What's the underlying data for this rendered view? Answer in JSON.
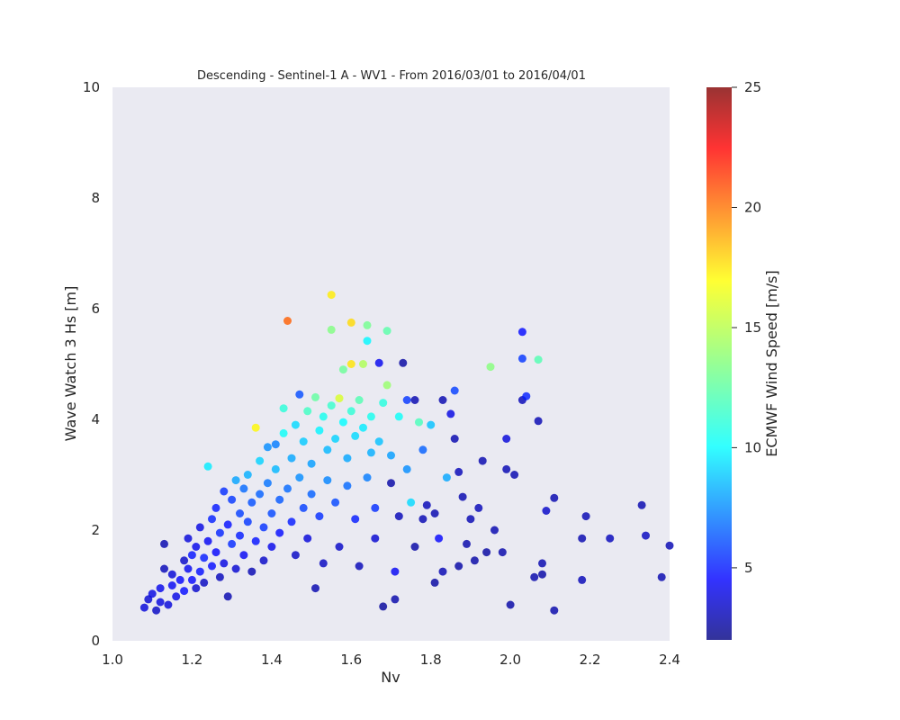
{
  "chart_data": {
    "type": "scatter",
    "title": "Descending - Sentinel-1 A - WV1 - From 2016/03/01 to 2016/04/01",
    "xlabel": "Nv",
    "ylabel": "Wave Watch 3 Hs [m]",
    "xlim": [
      1.0,
      2.4
    ],
    "ylim": [
      0,
      10
    ],
    "xticks": [
      "1.0",
      "1.2",
      "1.4",
      "1.6",
      "1.8",
      "2.0",
      "2.2",
      "2.4"
    ],
    "yticks": [
      "0",
      "2",
      "4",
      "6",
      "8",
      "10"
    ],
    "grid": false,
    "background": "#eaeaf2",
    "colorbar": {
      "label": "ECMWF Wind Speed [m/s]",
      "range": [
        2,
        25
      ],
      "ticks": [
        "5",
        "10",
        "15",
        "20",
        "25"
      ],
      "colormap": "jet"
    },
    "points": [
      [
        1.08,
        0.6,
        4.0
      ],
      [
        1.09,
        0.75,
        3.8
      ],
      [
        1.1,
        0.85,
        4.2
      ],
      [
        1.11,
        0.55,
        3.5
      ],
      [
        1.12,
        0.7,
        4.1
      ],
      [
        1.12,
        0.95,
        4.4
      ],
      [
        1.13,
        1.3,
        3.2
      ],
      [
        1.13,
        1.75,
        3.0
      ],
      [
        1.14,
        0.65,
        4.0
      ],
      [
        1.15,
        1.0,
        4.6
      ],
      [
        1.15,
        1.2,
        3.9
      ],
      [
        1.16,
        0.8,
        4.3
      ],
      [
        1.17,
        1.1,
        4.8
      ],
      [
        1.18,
        1.45,
        3.6
      ],
      [
        1.18,
        0.9,
        5.0
      ],
      [
        1.19,
        1.3,
        4.5
      ],
      [
        1.19,
        1.85,
        4.0
      ],
      [
        1.2,
        1.1,
        4.9
      ],
      [
        1.2,
        1.55,
        5.2
      ],
      [
        1.21,
        0.95,
        3.7
      ],
      [
        1.21,
        1.7,
        4.4
      ],
      [
        1.22,
        1.25,
        5.1
      ],
      [
        1.22,
        2.05,
        4.2
      ],
      [
        1.23,
        1.5,
        5.4
      ],
      [
        1.23,
        1.05,
        3.4
      ],
      [
        1.24,
        1.8,
        4.6
      ],
      [
        1.24,
        3.15,
        10.2
      ],
      [
        1.25,
        1.35,
        5.0
      ],
      [
        1.25,
        2.2,
        5.5
      ],
      [
        1.26,
        1.6,
        4.8
      ],
      [
        1.26,
        2.4,
        5.3
      ],
      [
        1.27,
        1.15,
        3.3
      ],
      [
        1.27,
        1.95,
        5.6
      ],
      [
        1.28,
        2.7,
        5.8
      ],
      [
        1.28,
        1.4,
        4.2
      ],
      [
        1.29,
        2.1,
        5.1
      ],
      [
        1.29,
        0.8,
        3.0
      ],
      [
        1.3,
        1.75,
        5.7
      ],
      [
        1.3,
        2.55,
        6.0
      ],
      [
        1.31,
        2.9,
        8.5
      ],
      [
        1.31,
        1.3,
        3.8
      ],
      [
        1.32,
        2.3,
        6.2
      ],
      [
        1.32,
        1.9,
        5.4
      ],
      [
        1.33,
        2.75,
        7.2
      ],
      [
        1.33,
        1.55,
        4.6
      ],
      [
        1.34,
        3.0,
        8.8
      ],
      [
        1.34,
        2.15,
        6.0
      ],
      [
        1.35,
        1.25,
        3.1
      ],
      [
        1.35,
        2.5,
        6.6
      ],
      [
        1.36,
        3.85,
        16.5
      ],
      [
        1.36,
        1.8,
        5.2
      ],
      [
        1.37,
        3.25,
        9.6
      ],
      [
        1.37,
        2.65,
        7.0
      ],
      [
        1.38,
        2.05,
        5.9
      ],
      [
        1.38,
        1.45,
        3.6
      ],
      [
        1.39,
        3.5,
        8.0
      ],
      [
        1.39,
        2.85,
        7.4
      ],
      [
        1.4,
        2.3,
        6.4
      ],
      [
        1.4,
        1.7,
        4.4
      ],
      [
        1.41,
        3.1,
        9.0
      ],
      [
        1.41,
        3.55,
        7.6
      ],
      [
        1.42,
        2.55,
        6.8
      ],
      [
        1.42,
        1.95,
        5.0
      ],
      [
        1.43,
        3.75,
        10.8
      ],
      [
        1.43,
        4.2,
        11.5
      ],
      [
        1.44,
        5.78,
        20.0
      ],
      [
        1.44,
        2.75,
        7.2
      ],
      [
        1.45,
        3.3,
        8.6
      ],
      [
        1.45,
        2.15,
        5.4
      ],
      [
        1.46,
        3.9,
        9.8
      ],
      [
        1.46,
        1.55,
        3.5
      ],
      [
        1.47,
        4.45,
        6.5
      ],
      [
        1.47,
        2.95,
        8.0
      ],
      [
        1.48,
        3.6,
        9.4
      ],
      [
        1.48,
        2.4,
        6.2
      ],
      [
        1.49,
        4.15,
        12.0
      ],
      [
        1.49,
        1.85,
        4.0
      ],
      [
        1.5,
        3.2,
        8.4
      ],
      [
        1.5,
        2.65,
        7.0
      ],
      [
        1.51,
        4.4,
        12.8
      ],
      [
        1.51,
        0.95,
        3.0
      ],
      [
        1.52,
        3.8,
        10.4
      ],
      [
        1.52,
        2.25,
        5.8
      ],
      [
        1.53,
        4.05,
        11.0
      ],
      [
        1.53,
        1.4,
        3.4
      ],
      [
        1.54,
        3.45,
        9.0
      ],
      [
        1.54,
        2.9,
        7.8
      ],
      [
        1.55,
        6.25,
        16.8
      ],
      [
        1.55,
        5.62,
        13.5
      ],
      [
        1.55,
        4.25,
        11.8
      ],
      [
        1.56,
        3.65,
        9.6
      ],
      [
        1.56,
        2.5,
        6.4
      ],
      [
        1.57,
        4.38,
        15.5
      ],
      [
        1.57,
        1.7,
        3.6
      ],
      [
        1.58,
        3.95,
        10.6
      ],
      [
        1.58,
        4.9,
        13.0
      ],
      [
        1.59,
        2.8,
        7.2
      ],
      [
        1.59,
        3.3,
        8.6
      ],
      [
        1.6,
        5.75,
        17.2
      ],
      [
        1.6,
        5.0,
        17.0
      ],
      [
        1.6,
        4.15,
        11.6
      ],
      [
        1.61,
        3.7,
        9.8
      ],
      [
        1.61,
        2.2,
        5.4
      ],
      [
        1.62,
        4.35,
        12.4
      ],
      [
        1.62,
        1.35,
        3.2
      ],
      [
        1.63,
        5.0,
        14.5
      ],
      [
        1.63,
        3.85,
        10.2
      ],
      [
        1.64,
        5.7,
        13.2
      ],
      [
        1.64,
        5.42,
        10.5
      ],
      [
        1.64,
        2.95,
        7.6
      ],
      [
        1.65,
        4.05,
        11.0
      ],
      [
        1.65,
        3.4,
        8.8
      ],
      [
        1.66,
        2.4,
        5.8
      ],
      [
        1.66,
        1.85,
        3.8
      ],
      [
        1.67,
        5.02,
        4.5
      ],
      [
        1.67,
        3.6,
        9.2
      ],
      [
        1.68,
        0.62,
        2.6
      ],
      [
        1.68,
        4.3,
        11.4
      ],
      [
        1.69,
        5.6,
        12.6
      ],
      [
        1.69,
        4.62,
        14.0
      ],
      [
        1.7,
        2.85,
        2.8
      ],
      [
        1.7,
        3.35,
        8.4
      ],
      [
        1.71,
        0.75,
        2.9
      ],
      [
        1.71,
        1.25,
        4.6
      ],
      [
        1.72,
        4.05,
        10.8
      ],
      [
        1.72,
        2.25,
        3.2
      ],
      [
        1.73,
        5.02,
        2.7
      ],
      [
        1.74,
        3.1,
        8.0
      ],
      [
        1.74,
        4.35,
        6.0
      ],
      [
        1.75,
        2.5,
        9.8
      ],
      [
        1.76,
        1.7,
        2.8
      ],
      [
        1.76,
        4.35,
        3.0
      ],
      [
        1.77,
        3.95,
        12.2
      ],
      [
        1.78,
        2.2,
        3.1
      ],
      [
        1.78,
        3.45,
        7.0
      ],
      [
        1.79,
        2.45,
        3.2
      ],
      [
        1.8,
        3.9,
        9.2
      ],
      [
        1.81,
        1.05,
        2.7
      ],
      [
        1.81,
        2.3,
        3.0
      ],
      [
        1.82,
        1.85,
        4.8
      ],
      [
        1.83,
        4.35,
        3.0
      ],
      [
        1.83,
        1.25,
        3.1
      ],
      [
        1.84,
        2.95,
        8.6
      ],
      [
        1.85,
        4.1,
        4.2
      ],
      [
        1.86,
        4.52,
        6.2
      ],
      [
        1.86,
        3.65,
        3.0
      ],
      [
        1.87,
        1.35,
        2.8
      ],
      [
        1.87,
        3.05,
        3.2
      ],
      [
        1.88,
        2.6,
        3.0
      ],
      [
        1.89,
        1.75,
        2.9
      ],
      [
        1.9,
        2.2,
        3.1
      ],
      [
        1.91,
        1.45,
        2.8
      ],
      [
        1.92,
        2.4,
        3.2
      ],
      [
        1.93,
        3.25,
        3.0
      ],
      [
        1.94,
        1.6,
        2.7
      ],
      [
        1.95,
        4.95,
        13.6
      ],
      [
        1.96,
        2.0,
        3.0
      ],
      [
        1.98,
        1.6,
        2.9
      ],
      [
        1.99,
        3.65,
        4.0
      ],
      [
        1.99,
        3.1,
        3.1
      ],
      [
        2.0,
        0.65,
        2.8
      ],
      [
        2.01,
        3.0,
        3.0
      ],
      [
        2.03,
        4.35,
        3.2
      ],
      [
        2.03,
        5.58,
        5.0
      ],
      [
        2.03,
        5.1,
        6.0
      ],
      [
        2.04,
        4.42,
        5.5
      ],
      [
        2.06,
        1.15,
        2.9
      ],
      [
        2.07,
        3.97,
        3.1
      ],
      [
        2.07,
        5.08,
        12.4
      ],
      [
        2.08,
        1.4,
        3.0
      ],
      [
        2.08,
        1.2,
        2.8
      ],
      [
        2.09,
        2.35,
        3.6
      ],
      [
        2.11,
        2.58,
        3.0
      ],
      [
        2.11,
        0.55,
        2.9
      ],
      [
        2.18,
        1.85,
        3.0
      ],
      [
        2.18,
        1.1,
        3.2
      ],
      [
        2.19,
        2.25,
        3.1
      ],
      [
        2.25,
        1.85,
        3.3
      ],
      [
        2.33,
        2.45,
        3.0
      ],
      [
        2.34,
        1.9,
        3.4
      ],
      [
        2.38,
        1.15,
        3.0
      ],
      [
        2.4,
        1.72,
        3.1
      ]
    ]
  }
}
